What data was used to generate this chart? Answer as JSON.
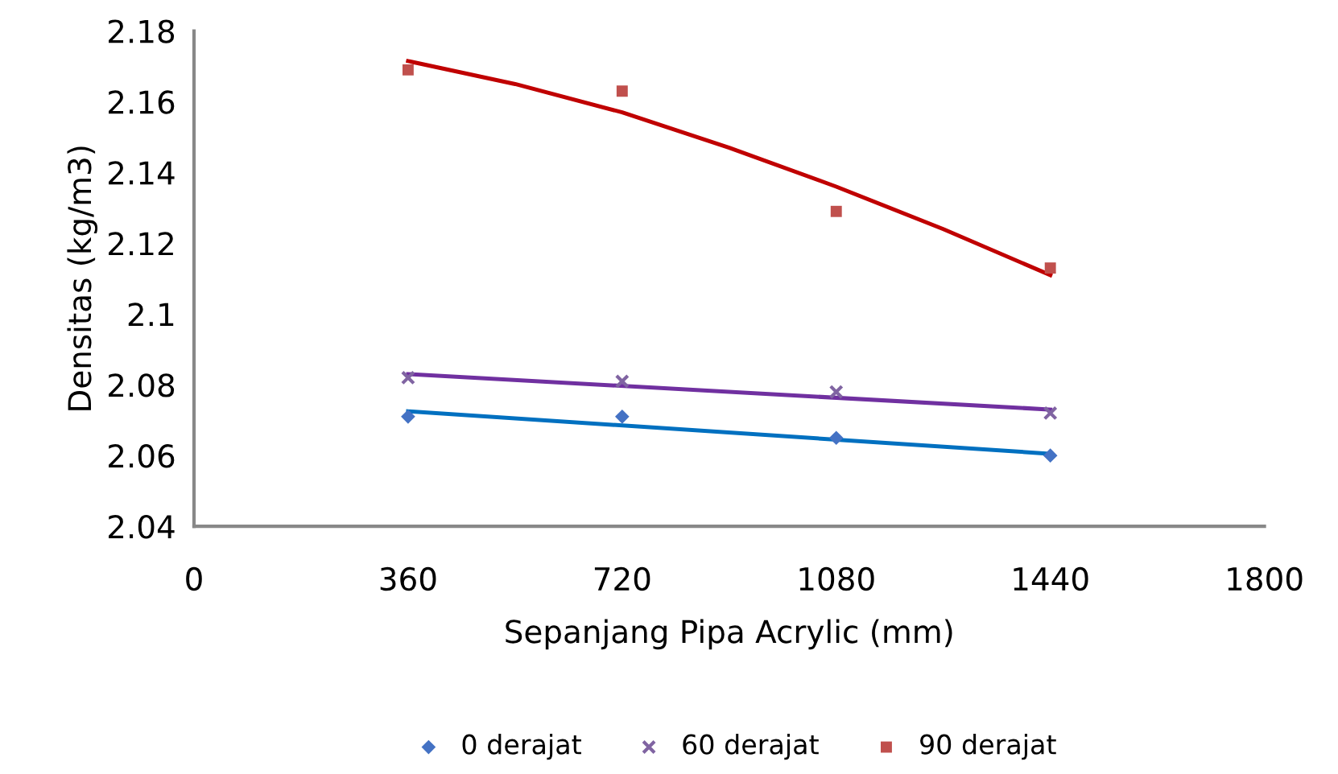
{
  "chart_data": {
    "type": "scatter",
    "xlabel": "Sepanjang Pipa Acrylic (mm)",
    "ylabel": "Densitas (kg/m3)",
    "xlim": [
      0,
      1800
    ],
    "xticks": [
      0,
      360,
      720,
      1080,
      1440,
      1800
    ],
    "ylim": [
      2.04,
      2.18
    ],
    "yticks": [
      2.04,
      2.06,
      2.08,
      2.1,
      2.12,
      2.14,
      2.16,
      2.18
    ],
    "grid": false,
    "legend": "bottom",
    "series": [
      {
        "name": "0 derajat",
        "color": "#4472c4",
        "marker": "diamond",
        "x": [
          360,
          720,
          1080,
          1440
        ],
        "values": [
          2.071,
          2.071,
          2.065,
          2.06
        ]
      },
      {
        "name": "60 derajat",
        "color": "#8064a2",
        "marker": "cross",
        "x": [
          360,
          720,
          1080,
          1440
        ],
        "values": [
          2.082,
          2.081,
          2.078,
          2.072
        ]
      },
      {
        "name": "90 derajat",
        "color": "#c0504d",
        "marker": "square",
        "x": [
          360,
          720,
          1080,
          1440
        ],
        "values": [
          2.169,
          2.163,
          2.129,
          2.113
        ]
      },
      {
        "type": "line",
        "color": "#0070c0",
        "x": [
          360,
          1440
        ],
        "values": [
          2.0725,
          2.0605
        ]
      },
      {
        "type": "line",
        "color": "#7030a0",
        "x": [
          360,
          1440
        ],
        "values": [
          2.083,
          2.073
        ]
      },
      {
        "type": "line",
        "color": "#c00000",
        "x": [
          360,
          540,
          720,
          900,
          1080,
          1260,
          1440
        ],
        "values": [
          2.1715,
          2.165,
          2.157,
          2.147,
          2.136,
          2.124,
          2.111
        ]
      }
    ]
  }
}
